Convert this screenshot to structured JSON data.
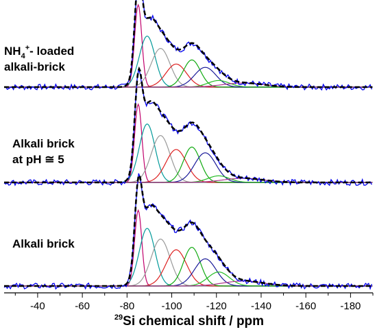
{
  "chart_data": {
    "type": "line",
    "xlabel": {
      "isotope_mass": "29",
      "text": "Si chemical shift / ppm"
    },
    "xlim": [
      -25,
      -190
    ],
    "x_ticks": [
      -40,
      -60,
      -80,
      -100,
      -120,
      -140,
      -160,
      -180
    ],
    "x_tick_labels": [
      "-40",
      "-60",
      "-80",
      "-100",
      "-120",
      "-140",
      "-160",
      "-180"
    ],
    "fit_components": [
      {
        "center": -85,
        "width": 1.6,
        "color": "#c0006c"
      },
      {
        "center": -89,
        "width": 3.5,
        "color": "#009999"
      },
      {
        "center": -95,
        "width": 4.2,
        "color": "#999999"
      },
      {
        "center": -102,
        "width": 4.6,
        "color": "#dd1f1f"
      },
      {
        "center": -109,
        "width": 3.8,
        "color": "#11aa11"
      },
      {
        "center": -115,
        "width": 4.8,
        "color": "#1a1a99"
      },
      {
        "center": -121,
        "width": 4.8,
        "color": "#22bb22"
      },
      {
        "center": -132,
        "width": 9.0,
        "color": "#aa3388"
      }
    ],
    "colors": {
      "experimental": "#0000ee",
      "fit_sum": "#000000"
    },
    "panels": [
      {
        "label_lines": [
          {
            "text": "NH",
            "sub": "4",
            "sup": "+",
            "rest": "- loaded"
          },
          {
            "text": "alkali-brick"
          }
        ],
        "amplitudes": [
          1.0,
          0.62,
          0.47,
          0.28,
          0.33,
          0.24,
          0.08,
          0.05
        ],
        "noise": 0.035
      },
      {
        "label_lines": [
          {
            "text": "Alkali brick"
          },
          {
            "text": "at pH ≅ 5"
          }
        ],
        "amplitudes": [
          0.95,
          0.71,
          0.57,
          0.4,
          0.43,
          0.36,
          0.08,
          0.05
        ],
        "noise": 0.035
      },
      {
        "label_lines": [
          {
            "text": "Alkali brick"
          }
        ],
        "amplitudes": [
          0.92,
          0.7,
          0.57,
          0.44,
          0.47,
          0.33,
          0.17,
          0.06
        ],
        "noise": 0.035
      }
    ]
  }
}
